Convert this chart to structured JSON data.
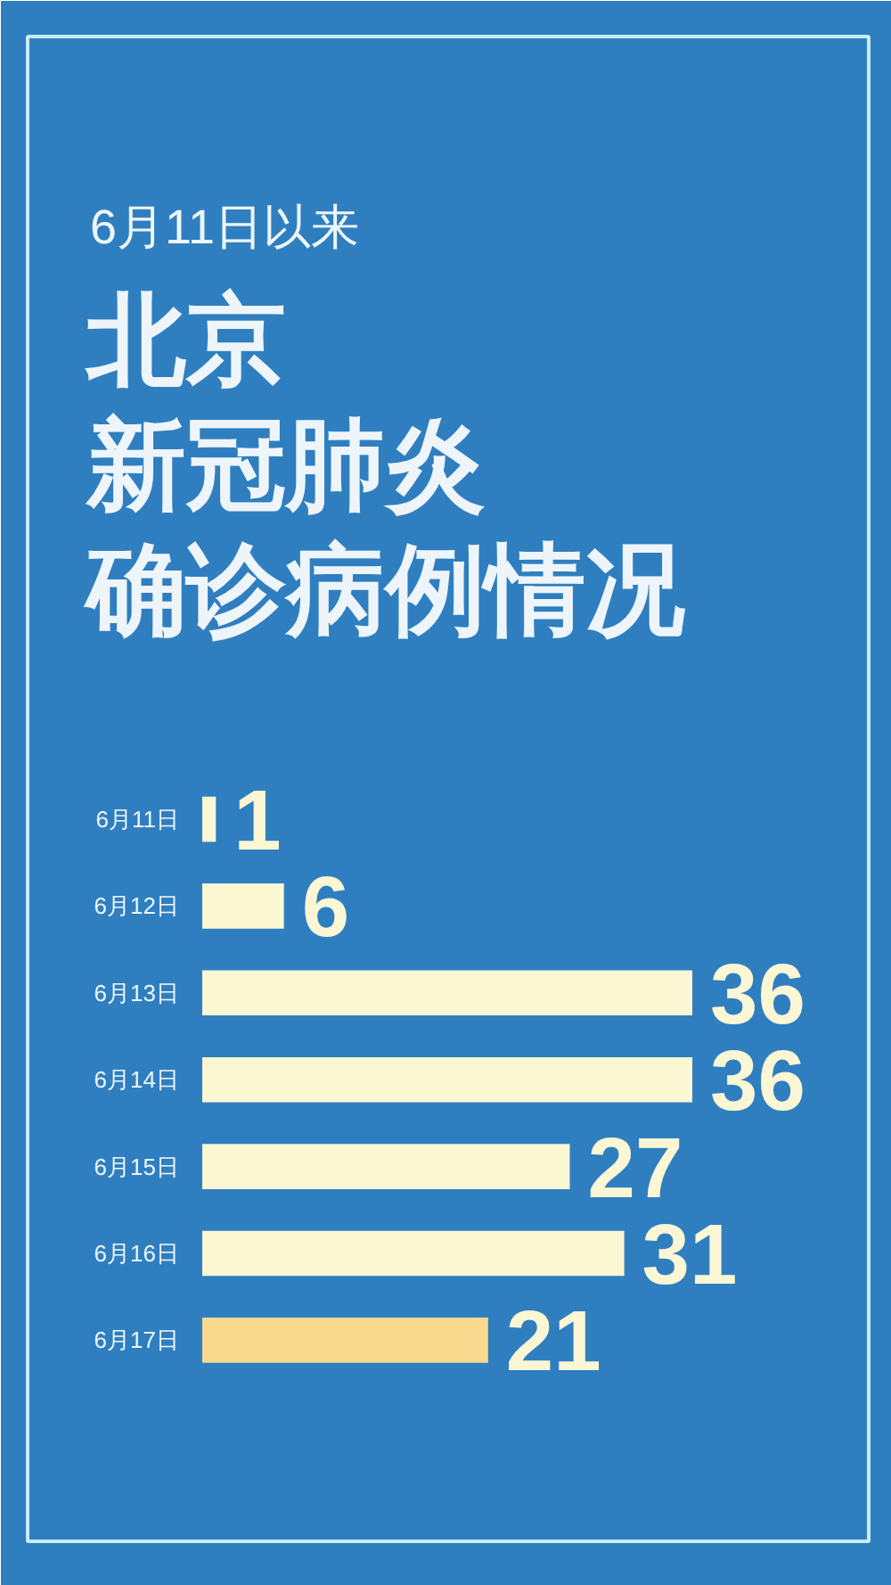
{
  "chart_data": {
    "type": "bar",
    "orientation": "horizontal",
    "subtitle": "6月11日以来",
    "title": "北京新冠肺炎确诊病例情况",
    "categories": [
      "6月11日",
      "6月12日",
      "6月13日",
      "6月14日",
      "6月15日",
      "6月16日",
      "6月17日"
    ],
    "values": [
      1,
      6,
      36,
      36,
      27,
      31,
      21
    ],
    "colors": [
      "#fcf7d3",
      "#fcf7d3",
      "#fcf7d3",
      "#fcf7d3",
      "#fcf7d3",
      "#fcf7d3",
      "#f8d98e"
    ],
    "data_labels": true
  }
}
